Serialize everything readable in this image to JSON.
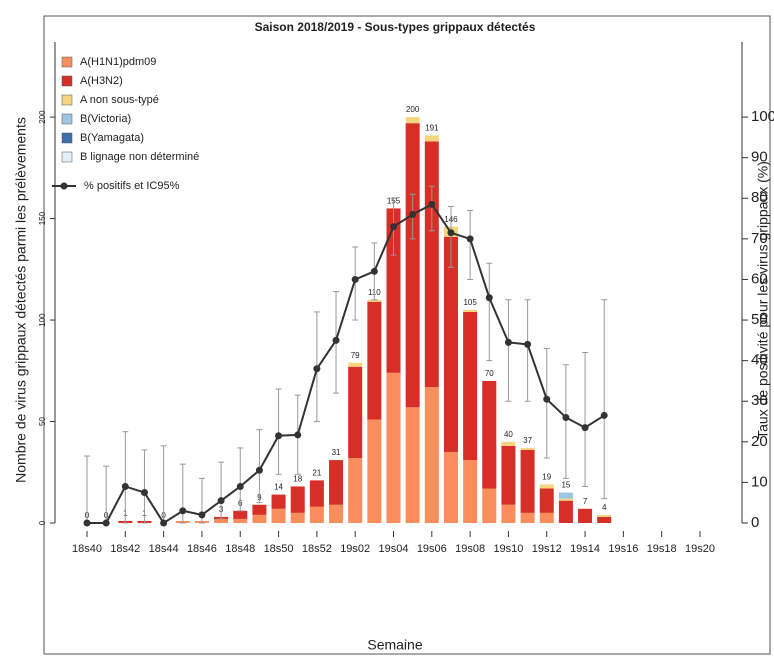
{
  "chart_data": {
    "type": "bar",
    "title": "Saison 2018/2019 - Sous-types grippaux détectés",
    "xlabel": "Semaine",
    "ylabel": "Nombre de virus grippaux détectés parmi les prélèvements",
    "y2label": "Taux de positivité pour les virus grippaux (%)",
    "categories": [
      "18s40",
      null,
      "18s42",
      null,
      "18s44",
      null,
      "18s46",
      null,
      "18s48",
      null,
      "18s50",
      null,
      "18s52",
      null,
      "19s02",
      null,
      "19s04",
      null,
      "19s06",
      null,
      "19s08",
      null,
      "19s10",
      null,
      "19s12",
      null,
      "19s14",
      null,
      "19s16",
      null,
      "19s18",
      null,
      "19s20"
    ],
    "series": [
      {
        "name": "A(H1N1)pdm09",
        "color": "#f98e5c",
        "values": [
          0,
          0,
          0,
          0,
          0,
          1,
          1,
          2,
          2,
          4,
          7,
          5,
          8,
          9,
          32,
          51,
          74,
          57,
          67,
          35,
          31,
          17,
          9,
          5,
          5,
          0,
          0,
          0,
          0,
          0,
          0,
          0,
          0
        ]
      },
      {
        "name": "A(H3N2)",
        "color": "#d52f28",
        "values": [
          0,
          0,
          1,
          1,
          0,
          0,
          0,
          1,
          4,
          5,
          7,
          13,
          13,
          22,
          45,
          58,
          81,
          140,
          121,
          106,
          73,
          53,
          29,
          31,
          12,
          11,
          7,
          3,
          0,
          0,
          0,
          0,
          0
        ]
      },
      {
        "name": "A non sous-typé",
        "color": "#f7d57f",
        "values": [
          0,
          0,
          0,
          0,
          0,
          0,
          0,
          0,
          0,
          0,
          0,
          0,
          0,
          0,
          2,
          1,
          0,
          3,
          3,
          5,
          1,
          0,
          2,
          1,
          2,
          1,
          0,
          1,
          0,
          0,
          0,
          0,
          0
        ]
      },
      {
        "name": "B(Victoria)",
        "color": "#9ec5e2",
        "values": [
          0,
          0,
          0,
          0,
          0,
          0,
          0,
          0,
          0,
          0,
          0,
          0,
          0,
          0,
          0,
          0,
          0,
          0,
          0,
          0,
          0,
          0,
          0,
          0,
          0,
          3,
          0,
          0,
          0,
          0,
          0,
          0,
          0
        ]
      },
      {
        "name": "B(Yamagata)",
        "color": "#3d6fae",
        "values": [
          0,
          0,
          0,
          0,
          0,
          0,
          0,
          0,
          0,
          0,
          0,
          0,
          0,
          0,
          0,
          0,
          0,
          0,
          0,
          0,
          0,
          0,
          0,
          0,
          0,
          0,
          0,
          0,
          0,
          0,
          0,
          0,
          0
        ]
      },
      {
        "name": "B lignage non déterminé",
        "color": "#e2f0f8",
        "values": [
          0,
          0,
          0,
          0,
          0,
          0,
          0,
          0,
          0,
          0,
          0,
          0,
          0,
          0,
          0,
          0,
          0,
          0,
          0,
          0,
          0,
          0,
          0,
          0,
          0,
          0,
          0,
          0,
          0,
          0,
          0,
          0,
          0
        ]
      },
      {
        "name": "% positifs et IC95%",
        "type": "line",
        "axis": "y2",
        "color": "#333333",
        "values": [
          0,
          0,
          9,
          7.5,
          0,
          3,
          2,
          5.5,
          9,
          13,
          21.5,
          21.7,
          38,
          45,
          60,
          62,
          73,
          76,
          78.5,
          71.5,
          70,
          55.5,
          44.5,
          44,
          30.5,
          26,
          23.5,
          26.5,
          null,
          null,
          null,
          null,
          null
        ],
        "ci_low": [
          0,
          0,
          0,
          0,
          0,
          0,
          0,
          1,
          3,
          5,
          12,
          12,
          25,
          32,
          50,
          55,
          66,
          70,
          72,
          63,
          60,
          40,
          30,
          30,
          16,
          11,
          9,
          6,
          null,
          null,
          null,
          null,
          null
        ],
        "ci_high": [
          16.5,
          14,
          22.5,
          18,
          19,
          14.5,
          11,
          15,
          18.5,
          23,
          33,
          31.5,
          52,
          57,
          68,
          69,
          80,
          81,
          83,
          78,
          77,
          64,
          55,
          55,
          43,
          39,
          42,
          55,
          null,
          null,
          null,
          null,
          null
        ]
      }
    ],
    "totals": [
      0,
      0,
      1,
      1,
      0,
      null,
      null,
      3,
      6,
      9,
      14,
      18,
      21,
      31,
      79,
      110,
      155,
      200,
      191,
      146,
      105,
      70,
      40,
      37,
      19,
      15,
      7,
      4,
      null,
      null,
      null,
      null,
      null
    ],
    "ylim": [
      0,
      237
    ],
    "yticks": [
      0,
      50,
      100,
      150,
      200
    ],
    "y2lim": [
      0,
      118.5
    ],
    "y2ticks": [
      0,
      10,
      20,
      30,
      40,
      50,
      60,
      70,
      80,
      90,
      100
    ],
    "legend": "upper left"
  }
}
